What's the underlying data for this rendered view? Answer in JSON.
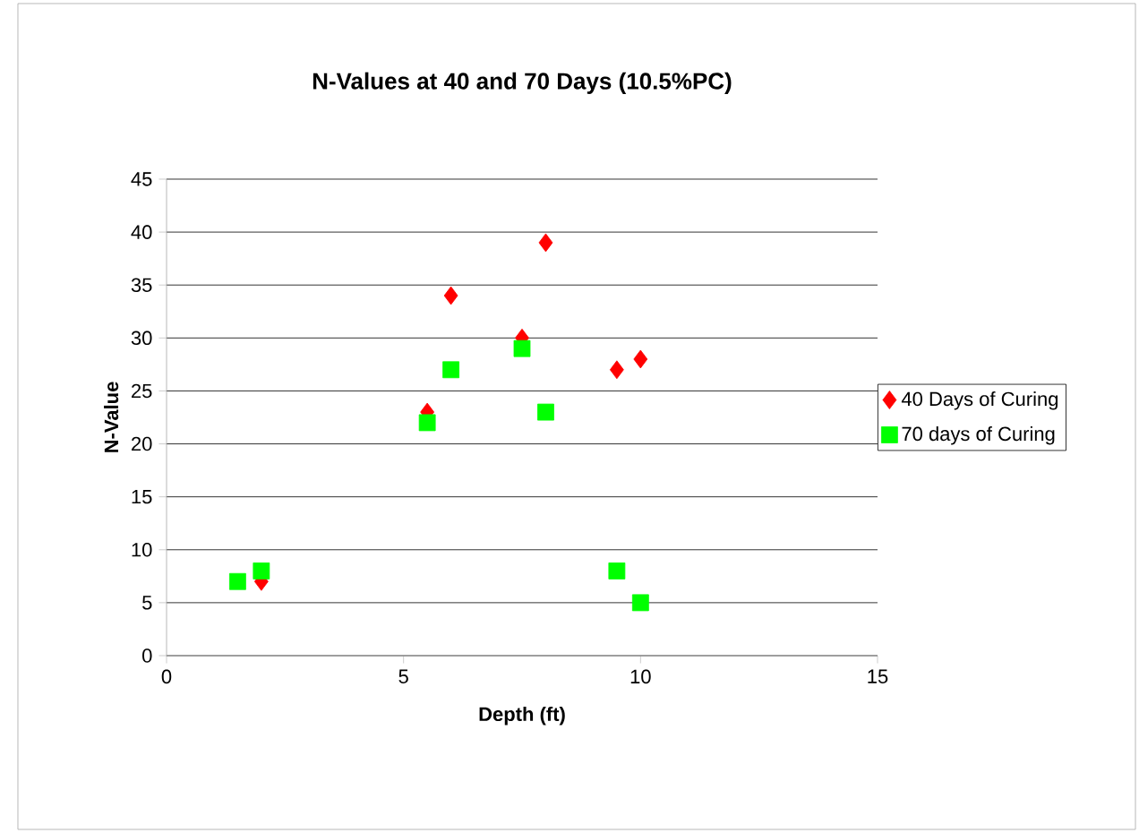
{
  "chart_data": {
    "type": "scatter",
    "title": "N-Values at 40 and 70 Days (10.5%PC)",
    "xlabel": "Depth (ft)",
    "ylabel": "N-Value",
    "series": [
      {
        "name": "40 Days of Curing",
        "color": "#ff0000",
        "marker": "diamond",
        "x": [
          2,
          5.5,
          6,
          7.5,
          8,
          9.5,
          10
        ],
        "values": [
          7,
          23,
          34,
          30,
          39,
          27,
          28
        ]
      },
      {
        "name": "70 days of Curing",
        "color": "#00ff00",
        "marker": "square",
        "x": [
          1.5,
          2,
          5.5,
          6,
          7.5,
          8,
          9.5,
          10
        ],
        "values": [
          7,
          8,
          22,
          27,
          29,
          23,
          8,
          5
        ]
      }
    ],
    "xlim": [
      0,
      15
    ],
    "xticks": [
      0,
      5,
      10,
      15
    ],
    "ylim": [
      0,
      45
    ],
    "yticks": [
      0,
      5,
      10,
      15,
      20,
      25,
      30,
      35,
      40,
      45
    ],
    "grid": "y",
    "legend": "right"
  }
}
